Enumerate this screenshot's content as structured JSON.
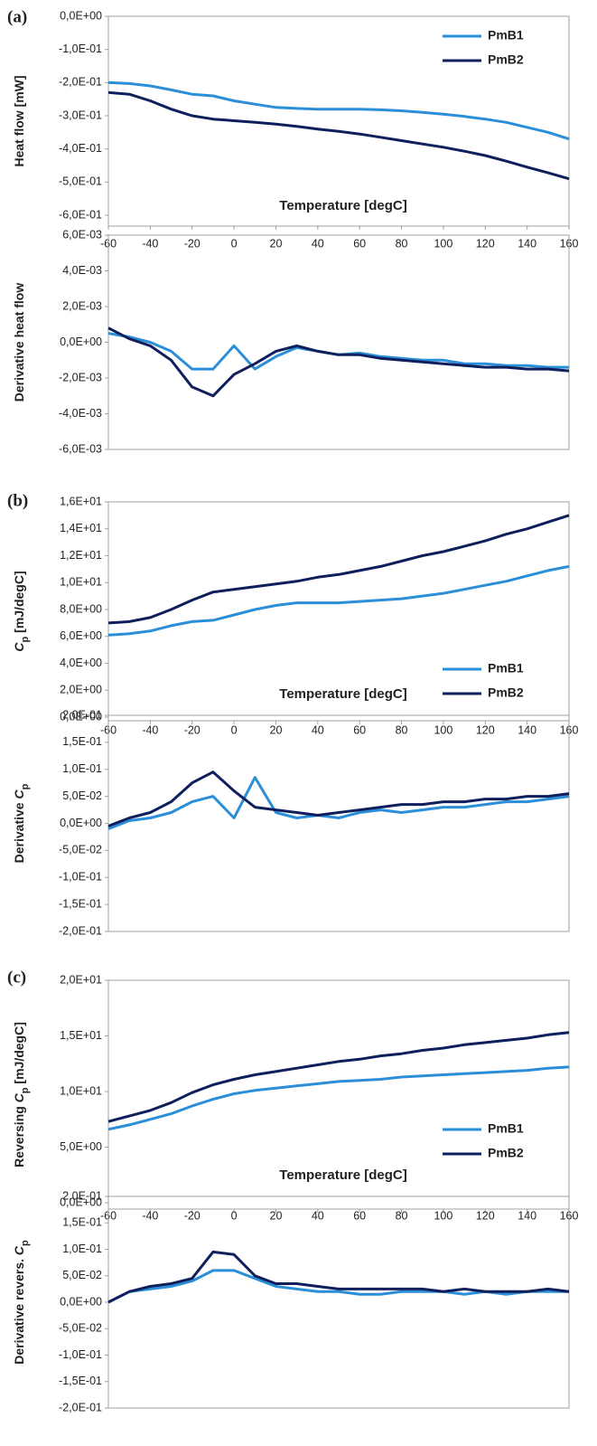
{
  "chart_data": [
    {
      "type": "line",
      "panel_label": "(a)",
      "ylabel": [
        {
          "text": "Heat flow [mW]"
        }
      ],
      "xlabel": "Temperature [degC]",
      "xlim": [
        -60,
        160
      ],
      "xticks": [
        -60,
        -40,
        -20,
        0,
        20,
        40,
        60,
        80,
        100,
        120,
        140,
        160
      ],
      "ylim": [
        -0.6,
        0
      ],
      "yticks": [
        {
          "value": 0,
          "label": "0,0E+00"
        },
        {
          "value": -0.1,
          "label": "-1,0E-01"
        },
        {
          "value": -0.2,
          "label": "-2,0E-01"
        },
        {
          "value": -0.3,
          "label": "-3,0E-01"
        },
        {
          "value": -0.4,
          "label": "-4,0E-01"
        },
        {
          "value": -0.5,
          "label": "-5,0E-01"
        },
        {
          "value": -0.6,
          "label": "-6,0E-01"
        }
      ],
      "legend": "upper right",
      "x": [
        -60,
        -50,
        -40,
        -30,
        -20,
        -10,
        0,
        10,
        20,
        30,
        40,
        50,
        60,
        70,
        80,
        90,
        100,
        110,
        120,
        130,
        140,
        150,
        160
      ],
      "series": [
        {
          "name": "PmB1",
          "color": "#2a8fd8",
          "values": [
            -0.2,
            -0.203,
            -0.21,
            -0.222,
            -0.235,
            -0.24,
            -0.255,
            -0.265,
            -0.275,
            -0.278,
            -0.28,
            -0.28,
            -0.28,
            -0.282,
            -0.285,
            -0.29,
            -0.295,
            -0.302,
            -0.31,
            -0.32,
            -0.335,
            -0.35,
            -0.37
          ]
        },
        {
          "name": "PmB2",
          "color": "#0f1f5c",
          "values": [
            -0.23,
            -0.235,
            -0.255,
            -0.28,
            -0.3,
            -0.31,
            -0.315,
            -0.32,
            -0.325,
            -0.332,
            -0.34,
            -0.347,
            -0.355,
            -0.365,
            -0.375,
            -0.385,
            -0.395,
            -0.407,
            -0.42,
            -0.437,
            -0.455,
            -0.472,
            -0.49
          ]
        }
      ]
    },
    {
      "type": "line",
      "ylabel": [
        {
          "text": "Derivative heat flow"
        }
      ],
      "xlim": [
        -60,
        160
      ],
      "ylim": [
        -0.006,
        0.006
      ],
      "yticks": [
        {
          "value": 0.006,
          "label": "6,0E-03"
        },
        {
          "value": 0.004,
          "label": "4,0E-03"
        },
        {
          "value": 0.002,
          "label": "2,0E-03"
        },
        {
          "value": 0,
          "label": "0,0E+00"
        },
        {
          "value": -0.002,
          "label": "-2,0E-03"
        },
        {
          "value": -0.004,
          "label": "-4,0E-03"
        },
        {
          "value": -0.006,
          "label": "-6,0E-03"
        }
      ],
      "x": [
        -60,
        -50,
        -40,
        -30,
        -20,
        -10,
        0,
        10,
        20,
        30,
        40,
        50,
        60,
        70,
        80,
        90,
        100,
        110,
        120,
        130,
        140,
        150,
        160
      ],
      "series": [
        {
          "name": "PmB1",
          "color": "#2a8fd8",
          "values": [
            0.0005,
            0.0003,
            0.0,
            -0.0005,
            -0.0015,
            -0.0015,
            -0.0002,
            -0.0015,
            -0.0008,
            -0.0003,
            -0.0005,
            -0.0007,
            -0.0006,
            -0.0008,
            -0.0009,
            -0.001,
            -0.001,
            -0.0012,
            -0.0012,
            -0.0013,
            -0.0013,
            -0.0014,
            -0.0014
          ]
        },
        {
          "name": "PmB2",
          "color": "#0f1f5c",
          "values": [
            0.0008,
            0.0002,
            -0.0002,
            -0.001,
            -0.0025,
            -0.003,
            -0.0018,
            -0.0012,
            -0.0005,
            -0.0002,
            -0.0005,
            -0.0007,
            -0.0007,
            -0.0009,
            -0.001,
            -0.0011,
            -0.0012,
            -0.0013,
            -0.0014,
            -0.0014,
            -0.0015,
            -0.0015,
            -0.0016
          ]
        }
      ]
    },
    {
      "type": "line",
      "panel_label": "(b)",
      "ylabel": [
        {
          "text": "C",
          "style": "italic"
        },
        {
          "text": "p",
          "style": "sub"
        },
        {
          "text": " [mJ/degC]"
        }
      ],
      "xlabel": "Temperature [degC]",
      "xlim": [
        -60,
        160
      ],
      "xticks": [
        -60,
        -40,
        -20,
        0,
        20,
        40,
        60,
        80,
        100,
        120,
        140,
        160
      ],
      "ylim": [
        0,
        16
      ],
      "yticks": [
        {
          "value": 16,
          "label": "1,6E+01"
        },
        {
          "value": 14,
          "label": "1,4E+01"
        },
        {
          "value": 12,
          "label": "1,2E+01"
        },
        {
          "value": 10,
          "label": "1,0E+01"
        },
        {
          "value": 8,
          "label": "8,0E+00"
        },
        {
          "value": 6,
          "label": "6,0E+00"
        },
        {
          "value": 4,
          "label": "4,0E+00"
        },
        {
          "value": 2,
          "label": "2,0E+00"
        },
        {
          "value": 0,
          "label": "0,0E+00"
        }
      ],
      "legend": "lower right",
      "x": [
        -60,
        -50,
        -40,
        -30,
        -20,
        -10,
        0,
        10,
        20,
        30,
        40,
        50,
        60,
        70,
        80,
        90,
        100,
        110,
        120,
        130,
        140,
        150,
        160
      ],
      "series": [
        {
          "name": "PmB1",
          "color": "#2a8fd8",
          "values": [
            6.1,
            6.2,
            6.4,
            6.8,
            7.1,
            7.2,
            7.6,
            8.0,
            8.3,
            8.5,
            8.5,
            8.5,
            8.6,
            8.7,
            8.8,
            9.0,
            9.2,
            9.5,
            9.8,
            10.1,
            10.5,
            10.9,
            11.2
          ]
        },
        {
          "name": "PmB2",
          "color": "#0f1f5c",
          "values": [
            7.0,
            7.1,
            7.4,
            8.0,
            8.7,
            9.3,
            9.5,
            9.7,
            9.9,
            10.1,
            10.4,
            10.6,
            10.9,
            11.2,
            11.6,
            12.0,
            12.3,
            12.7,
            13.1,
            13.6,
            14.0,
            14.5,
            15.0
          ]
        }
      ]
    },
    {
      "type": "line",
      "ylabel": [
        {
          "text": "Derivative "
        },
        {
          "text": "C",
          "style": "italic"
        },
        {
          "text": "p",
          "style": "sub"
        }
      ],
      "xlim": [
        -60,
        160
      ],
      "ylim": [
        -0.2,
        0.2
      ],
      "yticks": [
        {
          "value": 0.2,
          "label": "2,0E-01"
        },
        {
          "value": 0.15,
          "label": "1,5E-01"
        },
        {
          "value": 0.1,
          "label": "1,0E-01"
        },
        {
          "value": 0.05,
          "label": "5,0E-02"
        },
        {
          "value": 0,
          "label": "0,0E+00"
        },
        {
          "value": -0.05,
          "label": "-5,0E-02"
        },
        {
          "value": -0.1,
          "label": "-1,0E-01"
        },
        {
          "value": -0.15,
          "label": "-1,5E-01"
        },
        {
          "value": -0.2,
          "label": "-2,0E-01"
        }
      ],
      "x": [
        -60,
        -50,
        -40,
        -30,
        -20,
        -10,
        0,
        10,
        20,
        30,
        40,
        50,
        60,
        70,
        80,
        90,
        100,
        110,
        120,
        130,
        140,
        150,
        160
      ],
      "series": [
        {
          "name": "PmB1",
          "color": "#2a8fd8",
          "values": [
            -0.01,
            0.005,
            0.01,
            0.02,
            0.04,
            0.05,
            0.01,
            0.085,
            0.02,
            0.01,
            0.015,
            0.01,
            0.02,
            0.025,
            0.02,
            0.025,
            0.03,
            0.03,
            0.035,
            0.04,
            0.04,
            0.045,
            0.05
          ]
        },
        {
          "name": "PmB2",
          "color": "#0f1f5c",
          "values": [
            -0.005,
            0.01,
            0.02,
            0.04,
            0.075,
            0.095,
            0.06,
            0.03,
            0.025,
            0.02,
            0.015,
            0.02,
            0.025,
            0.03,
            0.035,
            0.035,
            0.04,
            0.04,
            0.045,
            0.045,
            0.05,
            0.05,
            0.055
          ]
        }
      ]
    },
    {
      "type": "line",
      "panel_label": "(c)",
      "ylabel": [
        {
          "text": "Reversing "
        },
        {
          "text": "C",
          "style": "italic"
        },
        {
          "text": "p",
          "style": "sub"
        },
        {
          "text": " [mJ/degC]"
        }
      ],
      "xlabel": "Temperature [degC]",
      "xlim": [
        -60,
        160
      ],
      "xticks": [
        -60,
        -40,
        -20,
        0,
        20,
        40,
        60,
        80,
        100,
        120,
        140,
        160
      ],
      "ylim": [
        0,
        20
      ],
      "yticks": [
        {
          "value": 20,
          "label": "2,0E+01"
        },
        {
          "value": 15,
          "label": "1,5E+01"
        },
        {
          "value": 10,
          "label": "1,0E+01"
        },
        {
          "value": 5,
          "label": "5,0E+00"
        },
        {
          "value": 0,
          "label": "0,0E+00"
        }
      ],
      "legend": "lower right",
      "x": [
        -60,
        -50,
        -40,
        -30,
        -20,
        -10,
        0,
        10,
        20,
        30,
        40,
        50,
        60,
        70,
        80,
        90,
        100,
        110,
        120,
        130,
        140,
        150,
        160
      ],
      "series": [
        {
          "name": "PmB1",
          "color": "#2a8fd8",
          "values": [
            6.6,
            7.0,
            7.5,
            8.0,
            8.7,
            9.3,
            9.8,
            10.1,
            10.3,
            10.5,
            10.7,
            10.9,
            11.0,
            11.1,
            11.3,
            11.4,
            11.5,
            11.6,
            11.7,
            11.8,
            11.9,
            12.1,
            12.2
          ]
        },
        {
          "name": "PmB2",
          "color": "#0f1f5c",
          "values": [
            7.3,
            7.8,
            8.3,
            9.0,
            9.9,
            10.6,
            11.1,
            11.5,
            11.8,
            12.1,
            12.4,
            12.7,
            12.9,
            13.2,
            13.4,
            13.7,
            13.9,
            14.2,
            14.4,
            14.6,
            14.8,
            15.1,
            15.3
          ]
        }
      ]
    },
    {
      "type": "line",
      "ylabel": [
        {
          "text": "Derivative revers. "
        },
        {
          "text": "C",
          "style": "italic"
        },
        {
          "text": "p",
          "style": "sub"
        }
      ],
      "xlim": [
        -60,
        160
      ],
      "ylim": [
        -0.2,
        0.2
      ],
      "yticks": [
        {
          "value": 0.2,
          "label": "2,0E-01"
        },
        {
          "value": 0.15,
          "label": "1,5E-01"
        },
        {
          "value": 0.1,
          "label": "1,0E-01"
        },
        {
          "value": 0.05,
          "label": "5,0E-02"
        },
        {
          "value": 0,
          "label": "0,0E+00"
        },
        {
          "value": -0.05,
          "label": "-5,0E-02"
        },
        {
          "value": -0.1,
          "label": "-1,0E-01"
        },
        {
          "value": -0.15,
          "label": "-1,5E-01"
        },
        {
          "value": -0.2,
          "label": "-2,0E-01"
        }
      ],
      "x": [
        -60,
        -50,
        -40,
        -30,
        -20,
        -10,
        0,
        10,
        20,
        30,
        40,
        50,
        60,
        70,
        80,
        90,
        100,
        110,
        120,
        130,
        140,
        150,
        160
      ],
      "series": [
        {
          "name": "PmB1",
          "color": "#2a8fd8",
          "values": [
            0.0,
            0.02,
            0.025,
            0.03,
            0.04,
            0.06,
            0.06,
            0.045,
            0.03,
            0.025,
            0.02,
            0.02,
            0.015,
            0.015,
            0.02,
            0.02,
            0.02,
            0.015,
            0.02,
            0.015,
            0.02,
            0.02,
            0.02
          ]
        },
        {
          "name": "PmB2",
          "color": "#0f1f5c",
          "values": [
            0.0,
            0.02,
            0.03,
            0.035,
            0.045,
            0.095,
            0.09,
            0.05,
            0.035,
            0.035,
            0.03,
            0.025,
            0.025,
            0.025,
            0.025,
            0.025,
            0.02,
            0.025,
            0.02,
            0.02,
            0.02,
            0.025,
            0.02
          ]
        }
      ]
    }
  ]
}
